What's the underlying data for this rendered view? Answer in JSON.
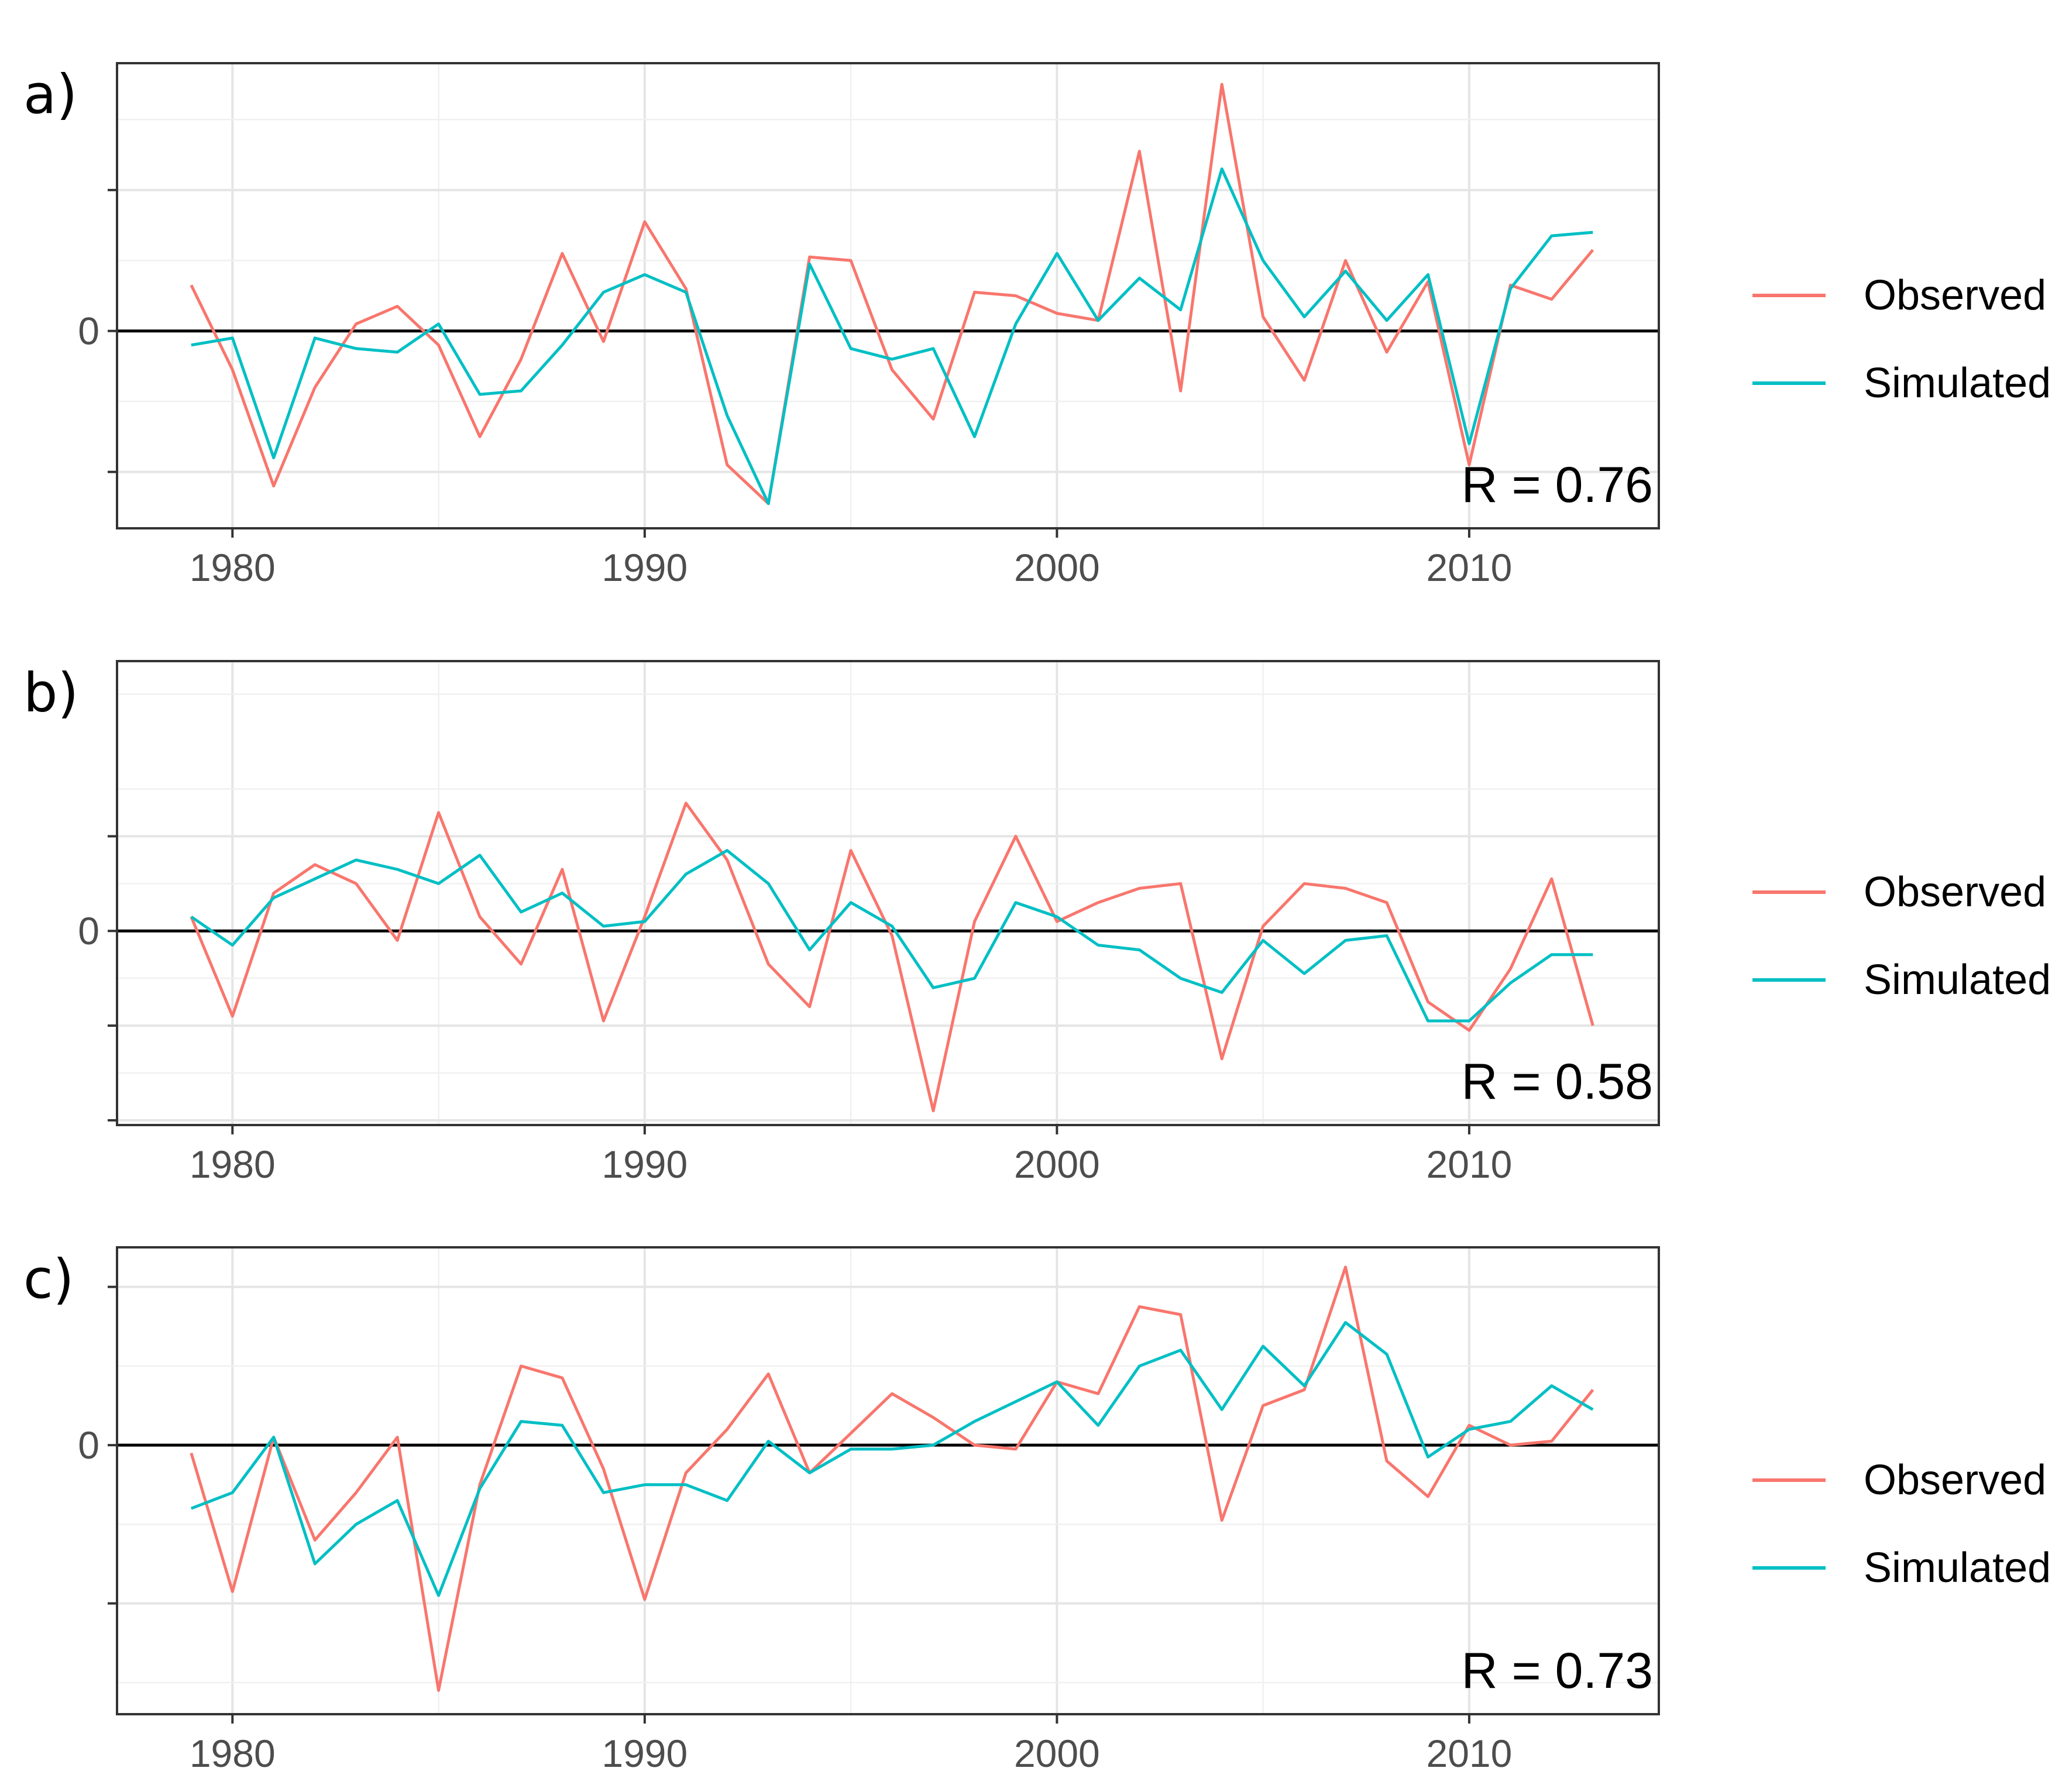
{
  "colors": {
    "observed": "#F8766D",
    "simulated": "#00BFC4"
  },
  "legend": {
    "observed_label": "Observed",
    "simulated_label": "Simulated"
  },
  "chart_data": [
    {
      "type": "line",
      "panel_label": "a)",
      "annotation": "R = 0.76",
      "zero_label": "0",
      "x_ticks": [
        "1980",
        "1990",
        "2000",
        "2010"
      ],
      "x": [
        1979,
        1980,
        1981,
        1982,
        1983,
        1984,
        1985,
        1986,
        1987,
        1988,
        1989,
        1990,
        1991,
        1992,
        1993,
        1994,
        1995,
        1996,
        1997,
        1998,
        1999,
        2000,
        2001,
        2002,
        2003,
        2004,
        2005,
        2006,
        2007,
        2008,
        2009,
        2010,
        2011,
        2012,
        2013
      ],
      "xlim": [
        1977.2,
        2014.6
      ],
      "ylim": [
        -2.8,
        3.8
      ],
      "y_ticks": [
        -2,
        0,
        2
      ],
      "series": [
        {
          "name": "Observed",
          "values": [
            0.65,
            -0.55,
            -2.2,
            -0.8,
            0.1,
            0.35,
            -0.2,
            -1.5,
            -0.4,
            1.1,
            -0.15,
            1.55,
            0.6,
            -1.9,
            -2.45,
            1.05,
            1.0,
            -0.55,
            -1.25,
            0.55,
            0.5,
            0.25,
            0.15,
            2.55,
            -0.85,
            3.5,
            0.2,
            -0.7,
            1.0,
            -0.3,
            0.7,
            -1.9,
            0.65,
            0.45,
            1.15
          ]
        },
        {
          "name": "Simulated",
          "values": [
            -0.2,
            -0.1,
            -1.8,
            -0.1,
            -0.25,
            -0.3,
            0.1,
            -0.9,
            -0.85,
            -0.2,
            0.55,
            0.8,
            0.55,
            -1.2,
            -2.45,
            0.95,
            -0.25,
            -0.4,
            -0.25,
            -1.5,
            0.1,
            1.1,
            0.15,
            0.75,
            0.3,
            2.3,
            1.0,
            0.2,
            0.85,
            0.15,
            0.8,
            -1.6,
            0.6,
            1.35,
            1.4
          ]
        }
      ]
    },
    {
      "type": "line",
      "panel_label": "b)",
      "annotation": "R = 0.58",
      "zero_label": "0",
      "x_ticks": [
        "1980",
        "1990",
        "2000",
        "2010"
      ],
      "x": [
        1979,
        1980,
        1981,
        1982,
        1983,
        1984,
        1985,
        1986,
        1987,
        1988,
        1989,
        1990,
        1991,
        1992,
        1993,
        1994,
        1995,
        1996,
        1997,
        1998,
        1999,
        2000,
        2001,
        2002,
        2003,
        2004,
        2005,
        2006,
        2007,
        2008,
        2009,
        2010,
        2011,
        2012,
        2013
      ],
      "xlim": [
        1977.2,
        2014.6
      ],
      "ylim": [
        -2.05,
        2.85
      ],
      "y_ticks": [
        -2,
        -1,
        0,
        1
      ],
      "series": [
        {
          "name": "Observed",
          "values": [
            0.15,
            -0.9,
            0.4,
            0.7,
            0.5,
            -0.1,
            1.25,
            0.15,
            -0.35,
            0.65,
            -0.95,
            0.15,
            1.35,
            0.75,
            -0.35,
            -0.8,
            0.85,
            -0.05,
            -1.9,
            0.1,
            1.0,
            0.1,
            0.3,
            0.45,
            0.5,
            -1.35,
            0.05,
            0.5,
            0.45,
            0.3,
            -0.75,
            -1.05,
            -0.4,
            0.55,
            -1.0
          ]
        },
        {
          "name": "Simulated",
          "values": [
            0.15,
            -0.15,
            0.35,
            0.55,
            0.75,
            0.65,
            0.5,
            0.8,
            0.2,
            0.4,
            0.05,
            0.1,
            0.6,
            0.85,
            0.5,
            -0.2,
            0.3,
            0.05,
            -0.6,
            -0.5,
            0.3,
            0.15,
            -0.15,
            -0.2,
            -0.5,
            -0.65,
            -0.1,
            -0.45,
            -0.1,
            -0.05,
            -0.95,
            -0.95,
            -0.55,
            -0.25,
            -0.25
          ]
        }
      ]
    },
    {
      "type": "line",
      "panel_label": "c)",
      "annotation": "R = 0.73",
      "zero_label": "0",
      "x_ticks": [
        "1980",
        "1990",
        "2000",
        "2010"
      ],
      "x": [
        1979,
        1980,
        1981,
        1982,
        1983,
        1984,
        1985,
        1986,
        1987,
        1988,
        1989,
        1990,
        1991,
        1992,
        1993,
        1994,
        1995,
        1996,
        1997,
        1998,
        1999,
        2000,
        2001,
        2002,
        2003,
        2004,
        2005,
        2006,
        2007,
        2008,
        2009,
        2010,
        2011,
        2012,
        2013
      ],
      "xlim": [
        1977.2,
        2014.6
      ],
      "ylim": [
        -3.4,
        2.5
      ],
      "y_ticks": [
        -2,
        0,
        2
      ],
      "series": [
        {
          "name": "Observed",
          "values": [
            -0.1,
            -1.85,
            0.1,
            -1.2,
            -0.6,
            0.1,
            -3.1,
            -0.5,
            1.0,
            0.85,
            -0.3,
            -1.95,
            -0.35,
            0.2,
            0.9,
            -0.35,
            0.15,
            0.65,
            0.35,
            0.0,
            -0.05,
            0.8,
            0.65,
            1.75,
            1.65,
            -0.95,
            0.5,
            0.7,
            2.25,
            -0.2,
            -0.65,
            0.25,
            0.0,
            0.05,
            0.7
          ]
        },
        {
          "name": "Simulated",
          "values": [
            -0.8,
            -0.6,
            0.1,
            -1.5,
            -1.0,
            -0.7,
            -1.9,
            -0.55,
            0.3,
            0.25,
            -0.6,
            -0.5,
            -0.5,
            -0.7,
            0.05,
            -0.35,
            -0.05,
            -0.05,
            0.0,
            0.3,
            0.55,
            0.8,
            0.25,
            1.0,
            1.2,
            0.45,
            1.25,
            0.75,
            1.55,
            1.15,
            -0.15,
            0.2,
            0.3,
            0.75,
            0.45
          ]
        }
      ]
    }
  ]
}
